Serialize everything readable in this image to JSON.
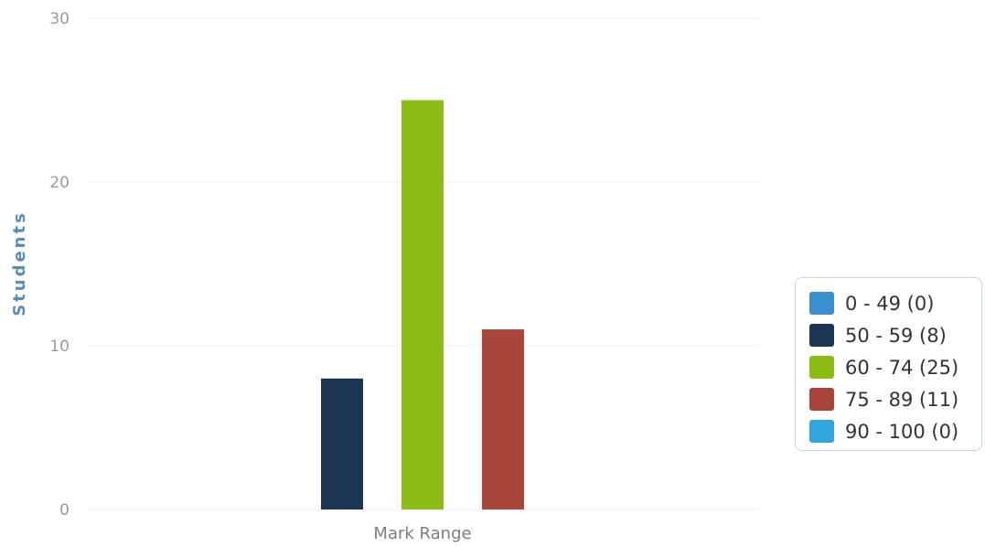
{
  "chart_data": {
    "type": "bar",
    "ylabel": "Students",
    "xlabel": "Mark Range",
    "categories": [
      "Mark Range"
    ],
    "ylim": [
      0,
      30
    ],
    "yticks": [
      0,
      10,
      20,
      30
    ],
    "grid": true,
    "legend_position": "right",
    "series": [
      {
        "name": "0 - 49 (0)",
        "values": [
          0
        ],
        "color": "#3a8fd0"
      },
      {
        "name": "50 - 59 (8)",
        "values": [
          8
        ],
        "color": "#1c3553"
      },
      {
        "name": "60 - 74 (25)",
        "values": [
          25
        ],
        "color": "#8cbd16"
      },
      {
        "name": "75 - 89 (11)",
        "values": [
          11
        ],
        "color": "#a9443a"
      },
      {
        "name": "90 - 100 (0)",
        "values": [
          0
        ],
        "color": "#2fa6dc"
      }
    ]
  }
}
